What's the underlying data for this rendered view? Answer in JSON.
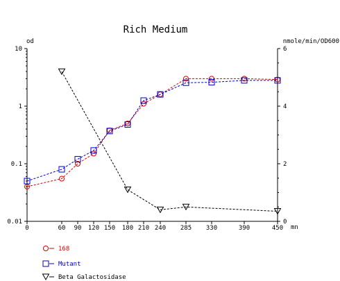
{
  "chart_data": {
    "type": "line",
    "title": "Rich Medium",
    "y_left_label": "od",
    "y_right_label": "nmole/min/OD600",
    "x_unit_label": "mn",
    "y_left_scale": "log",
    "y_left_range": [
      0.01,
      10
    ],
    "y_left_ticks": [
      "10",
      "1",
      "0.1",
      "0.01"
    ],
    "y_right_range": [
      0,
      6
    ],
    "y_right_ticks": [
      "6",
      "4",
      "2",
      "0"
    ],
    "x_ticks": [
      "0",
      "60",
      "90",
      "120",
      "150",
      "180",
      "210",
      "240",
      "285",
      "330",
      "390",
      "450"
    ],
    "grid": false,
    "legend_position": "bottom-left",
    "series": [
      {
        "name": "168",
        "axis": "left",
        "color": "#d40000",
        "marker": "circle",
        "x": [
          0,
          60,
          90,
          120,
          150,
          180,
          210,
          240,
          285,
          330,
          390,
          450
        ],
        "y": [
          0.04,
          0.055,
          0.1,
          0.15,
          0.38,
          0.5,
          1.1,
          1.6,
          3.0,
          3.0,
          3.0,
          2.9
        ]
      },
      {
        "name": "Mutant",
        "axis": "left",
        "color": "#0000c8",
        "marker": "square",
        "x": [
          0,
          60,
          90,
          120,
          150,
          180,
          210,
          240,
          285,
          330,
          390,
          450
        ],
        "y": [
          0.05,
          0.08,
          0.12,
          0.17,
          0.37,
          0.48,
          1.25,
          1.6,
          2.55,
          2.6,
          2.8,
          2.8
        ]
      },
      {
        "name": "Beta Galactosidase",
        "axis": "right",
        "color": "#000000",
        "marker": "triangle-down",
        "x": [
          60,
          180,
          240,
          285,
          450
        ],
        "y": [
          5.2,
          1.1,
          0.4,
          0.5,
          0.35
        ]
      }
    ]
  }
}
